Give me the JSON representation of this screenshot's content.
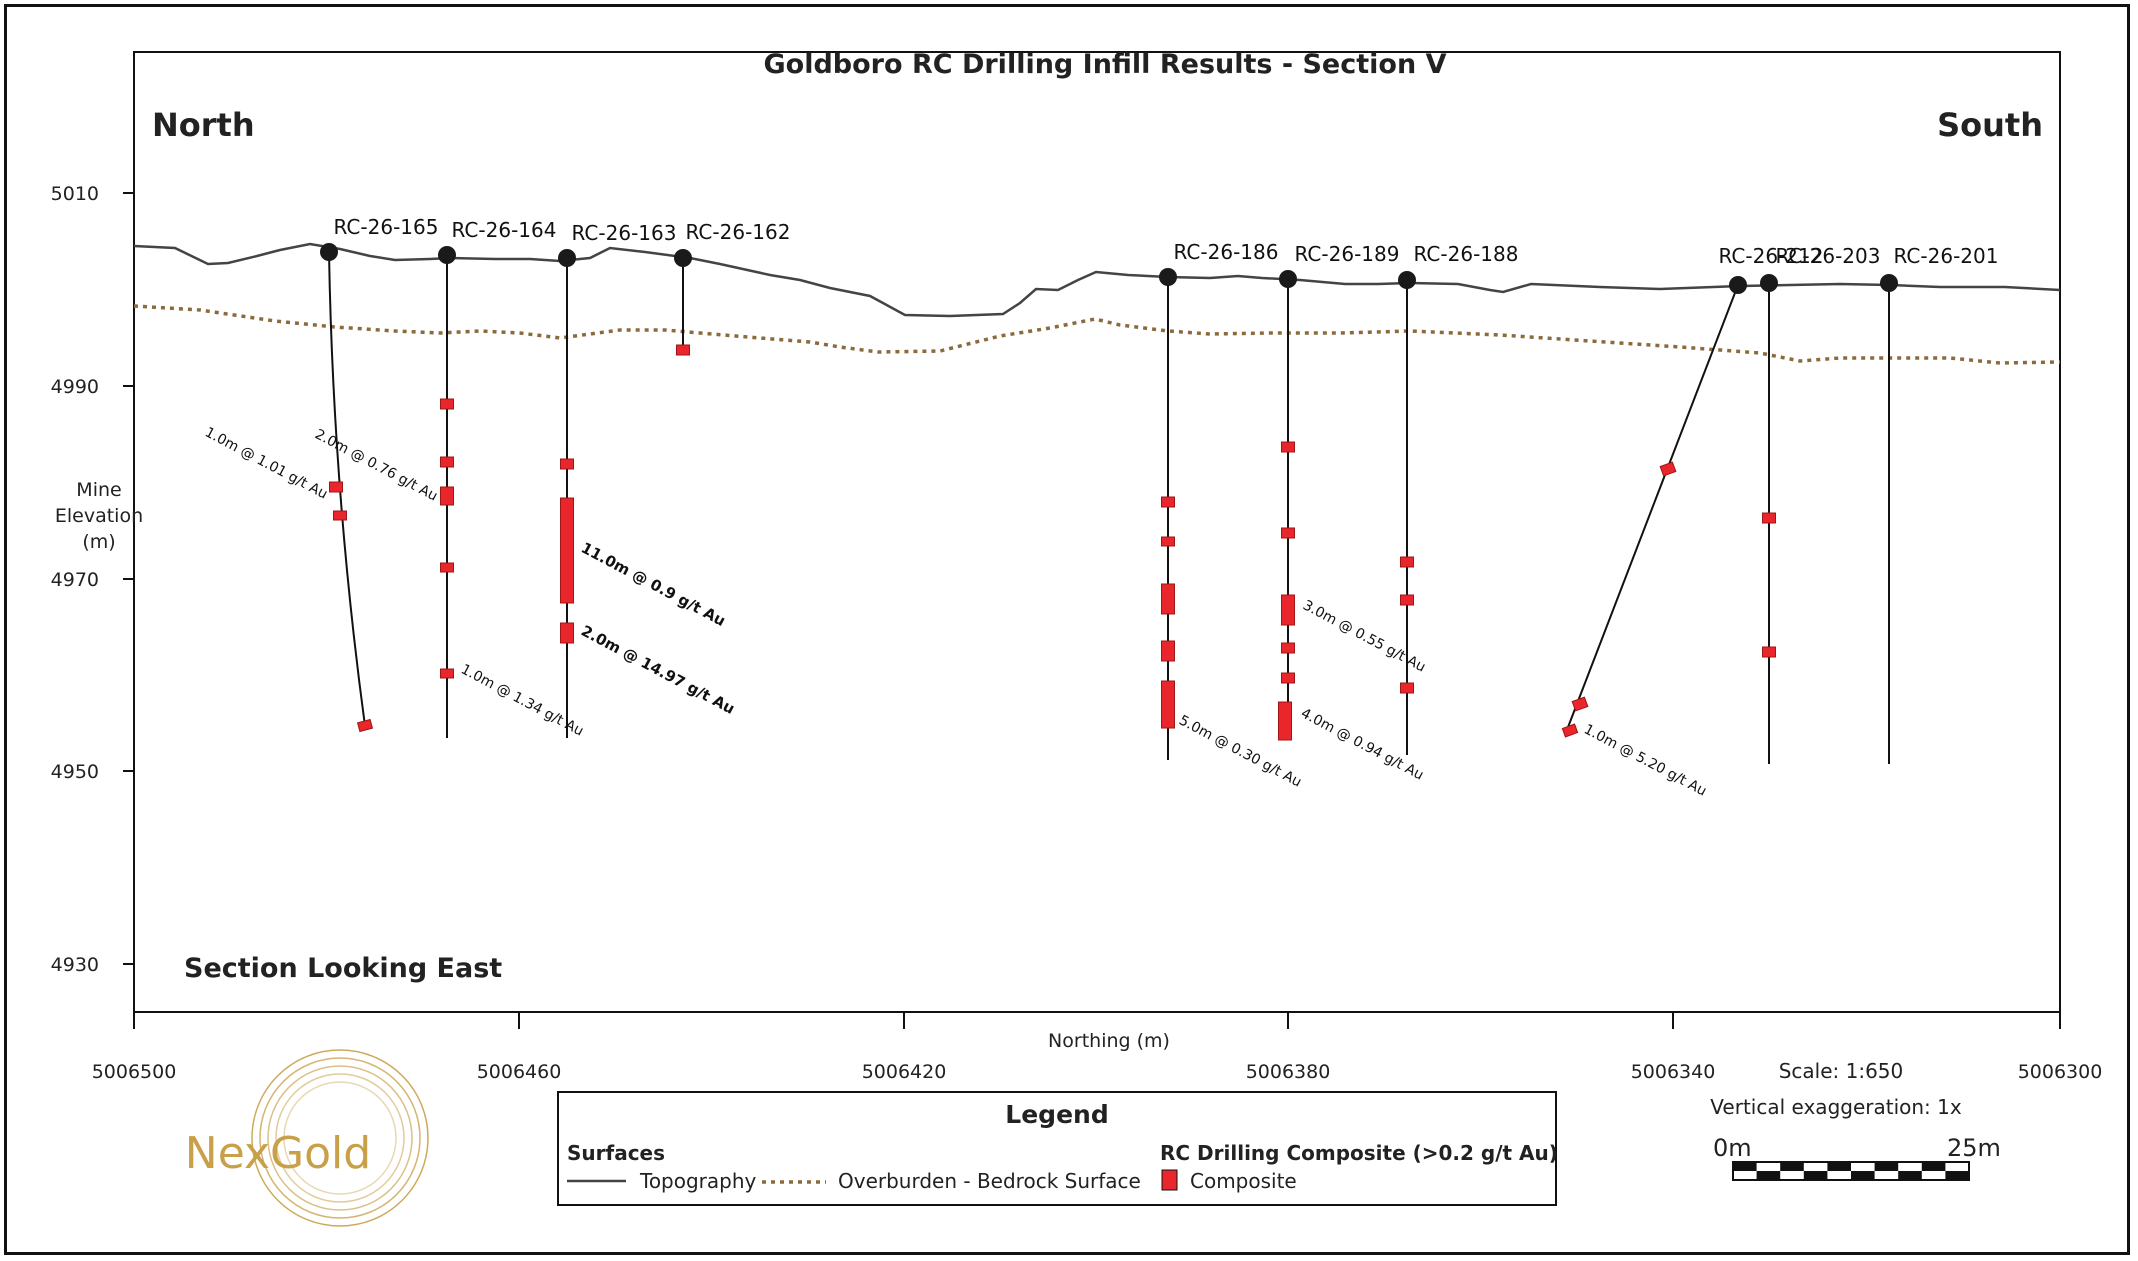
{
  "title": "Goldboro RC Drilling Infill Results - Section V",
  "left_direction": "North",
  "right_direction": "South",
  "section_note": "Section Looking East",
  "y_axis_label": [
    "Mine",
    "Elevation",
    "(m)"
  ],
  "x_axis_label": "Northing (m)",
  "y_ticks": [
    "5010",
    "4990",
    "4970",
    "4950",
    "4930"
  ],
  "x_ticks": [
    "5006500",
    "5006460",
    "5006420",
    "5006380",
    "5006340",
    "5006300"
  ],
  "holes": [
    {
      "name": "RC-26-165"
    },
    {
      "name": "RC-26-164"
    },
    {
      "name": "RC-26-163"
    },
    {
      "name": "RC-26-162"
    },
    {
      "name": "RC-26-186"
    },
    {
      "name": "RC-26-189"
    },
    {
      "name": "RC-26-188"
    },
    {
      "name": "RC-26-212"
    },
    {
      "name": "RC-26-203"
    },
    {
      "name": "RC-26-201"
    }
  ],
  "intercepts": [
    {
      "text": "1.0m @ 1.01 g/t Au",
      "bold": false
    },
    {
      "text": "2.0m @ 0.76 g/t Au",
      "bold": false
    },
    {
      "text": "1.0m @ 1.34 g/t Au",
      "bold": false
    },
    {
      "text": "11.0m @ 0.9 g/t Au",
      "bold": true
    },
    {
      "text": "2.0m @ 14.97 g/t Au",
      "bold": true
    },
    {
      "text": "5.0m @ 0.30 g/t Au",
      "bold": false
    },
    {
      "text": "3.0m @ 0.55 g/t Au",
      "bold": false
    },
    {
      "text": "4.0m @ 0.94 g/t Au",
      "bold": false
    },
    {
      "text": "1.0m @ 5.20 g/t Au",
      "bold": false
    }
  ],
  "legend": {
    "title": "Legend",
    "surfaces_heading": "Surfaces",
    "topography": "Topography",
    "overburden": "Overburden - Bedrock Surface",
    "composite_heading": "RC Drilling Composite (>0.2 g/t Au)",
    "composite": "Composite"
  },
  "scale": {
    "text": "Scale: 1:650",
    "vertical_exaggeration": "Vertical exaggeration: 1x",
    "bar_start": "0m",
    "bar_end": "25m"
  },
  "logo_text": "NexGold",
  "colors": {
    "composite": "#e8262b",
    "topography": "#444444",
    "overburden": "#8b6b3d",
    "logo_gold": "#c9a04a"
  }
}
